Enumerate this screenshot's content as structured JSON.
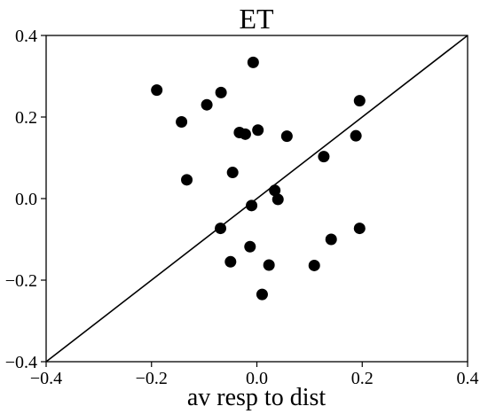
{
  "chart_data": {
    "type": "scatter",
    "title": "ET",
    "xlabel": "av resp to dist",
    "ylabel": "",
    "xlim": [
      -0.4,
      0.4
    ],
    "ylim": [
      -0.4,
      0.4
    ],
    "xticks": [
      -0.4,
      -0.2,
      0.0,
      0.2,
      0.4
    ],
    "yticks": [
      -0.4,
      -0.2,
      0.0,
      0.2,
      0.4
    ],
    "xtick_labels": [
      "−0.4",
      "−0.2",
      "0.0",
      "0.2",
      "0.4"
    ],
    "ytick_labels": [
      "−0.4",
      "−0.2",
      "0.0",
      "0.2",
      "0.4"
    ],
    "grid": false,
    "reference_line": {
      "slope": 1,
      "intercept": 0
    },
    "marker_color": "#000000",
    "points": [
      {
        "x": -0.19,
        "y": 0.266
      },
      {
        "x": -0.143,
        "y": 0.188
      },
      {
        "x": -0.095,
        "y": 0.23
      },
      {
        "x": -0.068,
        "y": 0.26
      },
      {
        "x": -0.007,
        "y": 0.334
      },
      {
        "x": 0.195,
        "y": 0.24
      },
      {
        "x": -0.033,
        "y": 0.162
      },
      {
        "x": -0.022,
        "y": 0.158
      },
      {
        "x": 0.002,
        "y": 0.168
      },
      {
        "x": 0.057,
        "y": 0.153
      },
      {
        "x": 0.188,
        "y": 0.154
      },
      {
        "x": 0.127,
        "y": 0.103
      },
      {
        "x": -0.046,
        "y": 0.064
      },
      {
        "x": -0.133,
        "y": 0.046
      },
      {
        "x": 0.034,
        "y": 0.02
      },
      {
        "x": 0.04,
        "y": -0.002
      },
      {
        "x": -0.01,
        "y": -0.017
      },
      {
        "x": -0.069,
        "y": -0.073
      },
      {
        "x": 0.195,
        "y": -0.073
      },
      {
        "x": 0.141,
        "y": -0.1
      },
      {
        "x": -0.013,
        "y": -0.118
      },
      {
        "x": -0.05,
        "y": -0.155
      },
      {
        "x": 0.023,
        "y": -0.163
      },
      {
        "x": 0.109,
        "y": -0.164
      },
      {
        "x": 0.01,
        "y": -0.235
      }
    ]
  }
}
